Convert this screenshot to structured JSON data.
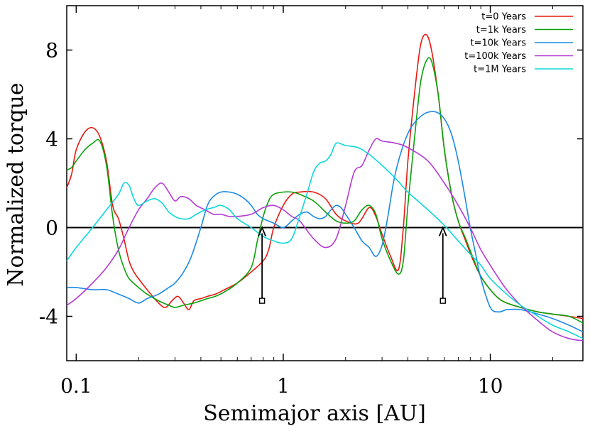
{
  "chart_data": {
    "type": "line",
    "title": "",
    "xlabel": "Semimajor axis [AU]",
    "ylabel": "Normalized torque",
    "xscale": "log",
    "xlim": [
      0.09,
      28
    ],
    "ylim": [
      -6,
      10
    ],
    "x_ticks": [
      {
        "value": 0.1,
        "label": "0.1"
      },
      {
        "value": 1,
        "label": "1"
      },
      {
        "value": 10,
        "label": "10"
      }
    ],
    "y_ticks": [
      {
        "value": -4,
        "label": "-4"
      },
      {
        "value": 0,
        "label": "0"
      },
      {
        "value": 4,
        "label": "4"
      },
      {
        "value": 8,
        "label": "8"
      }
    ],
    "legend_position": "top-right",
    "zero_line": true,
    "series": [
      {
        "name": "t=0 Years",
        "color": "#e8190f",
        "x": [
          0.09,
          0.095,
          0.1,
          0.11,
          0.12,
          0.13,
          0.14,
          0.15,
          0.16,
          0.17,
          0.18,
          0.19,
          0.2,
          0.22,
          0.25,
          0.27,
          0.29,
          0.31,
          0.33,
          0.35,
          0.37,
          0.4,
          0.43,
          0.47,
          0.52,
          0.6,
          0.7,
          0.8,
          0.85,
          0.9,
          1.0,
          1.1,
          1.2,
          1.4,
          1.6,
          1.8,
          2.0,
          2.3,
          2.6,
          2.8,
          3.0,
          3.3,
          3.6,
          3.8,
          4.0,
          4.3,
          4.6,
          4.9,
          5.2,
          5.6,
          6.0,
          6.5,
          7.0,
          7.6,
          8.2,
          9,
          10,
          11,
          12,
          14,
          17,
          20,
          24,
          28
        ],
        "y": [
          1.8,
          2.4,
          3.5,
          4.3,
          4.5,
          4.1,
          3.0,
          1.0,
          0.4,
          -0.5,
          -1.5,
          -2.0,
          -2.3,
          -2.8,
          -3.4,
          -3.6,
          -3.3,
          -3.1,
          -3.4,
          -3.7,
          -3.3,
          -3.2,
          -3.1,
          -3.0,
          -2.8,
          -2.5,
          -2.0,
          -1.5,
          -1.0,
          0.0,
          1.0,
          1.5,
          1.6,
          1.6,
          1.3,
          0.6,
          0.3,
          0.2,
          0.9,
          0.5,
          -0.3,
          -1.3,
          -1.9,
          0.0,
          3.0,
          6.0,
          8.2,
          8.7,
          8.0,
          6.0,
          3.5,
          1.5,
          0.3,
          -0.6,
          -1.4,
          -2.2,
          -2.8,
          -3.2,
          -3.4,
          -3.6,
          -3.8,
          -3.9,
          -4.0,
          -4.1
        ]
      },
      {
        "name": "t=1k Years",
        "color": "#0aa20a",
        "x": [
          0.09,
          0.095,
          0.1,
          0.11,
          0.12,
          0.13,
          0.14,
          0.15,
          0.16,
          0.17,
          0.18,
          0.2,
          0.22,
          0.25,
          0.28,
          0.3,
          0.33,
          0.37,
          0.4,
          0.43,
          0.47,
          0.52,
          0.6,
          0.7,
          0.75,
          0.8,
          0.85,
          0.9,
          1.0,
          1.1,
          1.2,
          1.4,
          1.6,
          1.8,
          2.0,
          2.2,
          2.4,
          2.6,
          2.8,
          3.0,
          3.3,
          3.6,
          3.8,
          4.0,
          4.3,
          4.6,
          4.9,
          5.2,
          5.6,
          6.0,
          6.5,
          7.0,
          7.6,
          8.2,
          9,
          10,
          11,
          12,
          14,
          17,
          20,
          24,
          28
        ],
        "y": [
          2.6,
          2.7,
          3.0,
          3.5,
          3.8,
          3.9,
          2.8,
          0.5,
          -1.0,
          -1.8,
          -2.3,
          -2.7,
          -3.0,
          -3.3,
          -3.5,
          -3.6,
          -3.5,
          -3.4,
          -3.3,
          -3.2,
          -3.1,
          -2.9,
          -2.5,
          -1.8,
          -0.6,
          0.5,
          1.2,
          1.5,
          1.6,
          1.6,
          1.5,
          1.2,
          0.7,
          0.3,
          0.2,
          0.3,
          0.8,
          1.0,
          0.6,
          -0.5,
          -1.5,
          -2.1,
          -1.5,
          1.0,
          4.0,
          6.5,
          7.5,
          7.5,
          6.0,
          3.5,
          1.5,
          0.3,
          -0.5,
          -1.3,
          -2.2,
          -2.8,
          -3.2,
          -3.4,
          -3.6,
          -3.8,
          -3.9,
          -4.0,
          -4.3
        ]
      },
      {
        "name": "t=10k Years",
        "color": "#1a8ae6",
        "x": [
          0.09,
          0.1,
          0.12,
          0.14,
          0.16,
          0.18,
          0.2,
          0.22,
          0.25,
          0.28,
          0.3,
          0.33,
          0.36,
          0.4,
          0.43,
          0.46,
          0.5,
          0.55,
          0.6,
          0.65,
          0.7,
          0.75,
          0.8,
          0.9,
          1.0,
          1.1,
          1.2,
          1.3,
          1.4,
          1.5,
          1.6,
          1.7,
          1.8,
          1.9,
          2.0,
          2.2,
          2.4,
          2.6,
          2.8,
          3.0,
          3.2,
          3.4,
          3.6,
          3.9,
          4.2,
          4.6,
          5.0,
          5.5,
          6.0,
          6.5,
          7.0,
          7.5,
          8.0,
          8.5,
          9,
          10,
          11,
          12,
          14,
          17,
          20,
          24,
          28
        ],
        "y": [
          -2.7,
          -2.7,
          -2.8,
          -2.8,
          -3.0,
          -3.2,
          -3.4,
          -3.2,
          -3.0,
          -2.7,
          -2.5,
          -2.0,
          -1.3,
          0.0,
          1.0,
          1.4,
          1.6,
          1.6,
          1.5,
          1.3,
          1.0,
          0.6,
          0.4,
          0.2,
          0.0,
          0.3,
          0.6,
          0.7,
          0.5,
          0.4,
          0.5,
          0.8,
          1.0,
          0.9,
          0.6,
          0.0,
          -0.6,
          -0.9,
          -1.3,
          -0.8,
          0.5,
          2.0,
          3.0,
          4.0,
          4.6,
          5.0,
          5.2,
          5.2,
          4.9,
          4.2,
          3.0,
          1.5,
          0.0,
          -1.2,
          -2.3,
          -3.6,
          -3.8,
          -3.7,
          -3.7,
          -3.9,
          -4.1,
          -4.4,
          -4.7
        ]
      },
      {
        "name": "t=100k Years",
        "color": "#b53ad6",
        "x": [
          0.09,
          0.1,
          0.12,
          0.14,
          0.16,
          0.18,
          0.2,
          0.22,
          0.24,
          0.26,
          0.28,
          0.3,
          0.32,
          0.35,
          0.38,
          0.42,
          0.46,
          0.5,
          0.55,
          0.6,
          0.7,
          0.8,
          0.9,
          1.0,
          1.1,
          1.2,
          1.4,
          1.6,
          1.8,
          2.0,
          2.2,
          2.4,
          2.6,
          2.8,
          3.0,
          3.5,
          4.0,
          5.0,
          6.0,
          7.0,
          8.0,
          9,
          10,
          11,
          12,
          14,
          17,
          20,
          24,
          28
        ],
        "y": [
          -3.5,
          -3.2,
          -2.5,
          -1.8,
          -1.0,
          0.0,
          0.8,
          1.3,
          1.8,
          2.0,
          1.6,
          1.2,
          1.4,
          1.3,
          1.0,
          0.8,
          0.6,
          0.6,
          0.5,
          0.5,
          0.6,
          0.9,
          1.0,
          0.8,
          0.5,
          0.3,
          -0.5,
          -0.9,
          -0.5,
          1.0,
          2.5,
          2.8,
          3.5,
          4.0,
          3.9,
          3.8,
          3.6,
          3.0,
          2.0,
          1.0,
          0.0,
          -1.0,
          -1.7,
          -2.3,
          -2.8,
          -3.5,
          -4.2,
          -4.7,
          -5.0,
          -5.1
        ]
      },
      {
        "name": "t=1M Years",
        "color": "#0dd8d8",
        "x": [
          0.09,
          0.1,
          0.12,
          0.14,
          0.16,
          0.17,
          0.18,
          0.19,
          0.2,
          0.22,
          0.24,
          0.26,
          0.28,
          0.3,
          0.32,
          0.35,
          0.38,
          0.42,
          0.46,
          0.5,
          0.55,
          0.6,
          0.7,
          0.8,
          0.9,
          1.0,
          1.1,
          1.2,
          1.3,
          1.4,
          1.5,
          1.6,
          1.7,
          1.8,
          2.0,
          2.3,
          2.6,
          3.0,
          3.5,
          4.0,
          5.0,
          6.0,
          7.0,
          8.0,
          9,
          10,
          12,
          14,
          17,
          20,
          24,
          28
        ],
        "y": [
          -1.5,
          -0.9,
          0.0,
          0.8,
          1.5,
          2.0,
          1.9,
          1.3,
          1.0,
          1.2,
          1.3,
          1.1,
          0.7,
          0.5,
          0.4,
          0.4,
          0.6,
          0.8,
          0.9,
          1.0,
          0.8,
          0.4,
          0.0,
          -0.4,
          -0.6,
          -0.7,
          -0.5,
          0.5,
          1.5,
          2.5,
          2.9,
          3.0,
          3.3,
          3.8,
          3.7,
          3.6,
          3.3,
          2.8,
          2.2,
          1.6,
          0.8,
          0.1,
          -0.6,
          -1.2,
          -1.7,
          -2.3,
          -3.0,
          -3.5,
          -4.0,
          -4.4,
          -4.7,
          -5.0
        ]
      }
    ],
    "arrows": [
      {
        "x": 0.79,
        "y_from": -3.3,
        "y_to": 0.0
      },
      {
        "x": 5.9,
        "y_from": -3.3,
        "y_to": 0.0
      }
    ]
  }
}
